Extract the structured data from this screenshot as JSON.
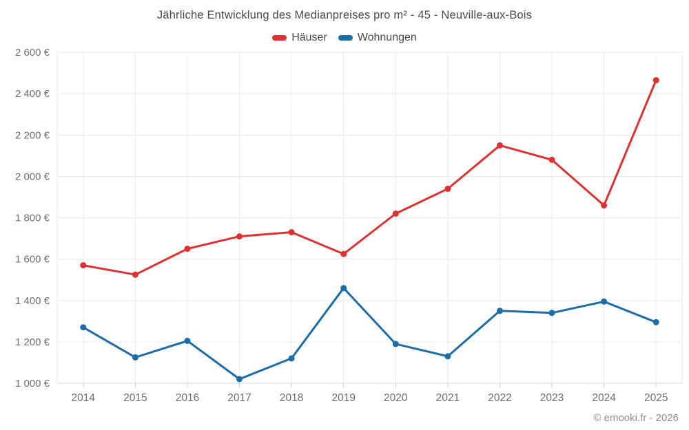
{
  "header": {
    "title": "Jährliche Entwicklung des Medianpreises pro m² - 45 - Neuville-aux-Bois"
  },
  "footer": {
    "credit": "© emooki.fr - 2026"
  },
  "chart_data": {
    "type": "line",
    "title": "Jährliche Entwicklung des Medianpreises pro m² - 45 - Neuville-aux-Bois",
    "xlabel": "",
    "ylabel": "",
    "categories": [
      "2014",
      "2015",
      "2016",
      "2017",
      "2018",
      "2019",
      "2020",
      "2021",
      "2022",
      "2023",
      "2024",
      "2025"
    ],
    "series": [
      {
        "name": "Häuser",
        "color": "#e03030",
        "values": [
          1570,
          1525,
          1650,
          1710,
          1730,
          1625,
          1820,
          1940,
          2150,
          2080,
          1860,
          2465
        ]
      },
      {
        "name": "Wohnungen",
        "color": "#1b6ca8",
        "values": [
          1270,
          1125,
          1205,
          1020,
          1120,
          1460,
          1190,
          1130,
          1350,
          1340,
          1395,
          1295
        ]
      }
    ],
    "ylim": [
      1000,
      2600
    ],
    "ytick_step": 200,
    "ytick_labels": [
      "1 000 €",
      "1 200 €",
      "1 400 €",
      "1 600 €",
      "1 800 €",
      "2 000 €",
      "2 200 €",
      "2 400 €",
      "2 600 €"
    ],
    "grid": true,
    "legend_position": "top",
    "currency_suffix": "€"
  },
  "style": {
    "grid_color": "#ebebeb",
    "axis_color": "#d8d8d8",
    "tick_color": "#cccccc",
    "tick_label_color": "#6f6f6f",
    "marker_radius": 4.5,
    "line_width": 3
  }
}
